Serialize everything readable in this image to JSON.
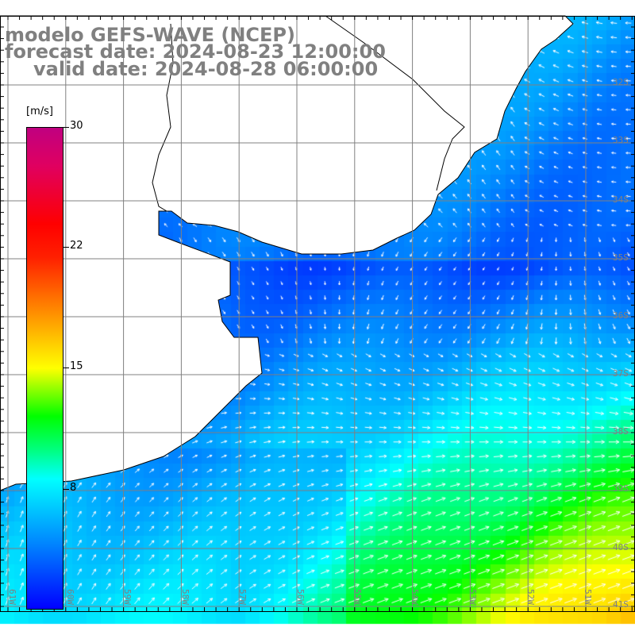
{
  "title": {
    "model": "modelo GEFS-WAVE (NCEP)",
    "forecast": "forecast date: 2024-08-23 12:00:00",
    "valid": "valid date: 2024-08-28 06:00:00"
  },
  "colorbar": {
    "units": "[m/s]",
    "labels": [
      "30",
      "22",
      "15",
      "8"
    ],
    "values": [
      30,
      22,
      15,
      8
    ],
    "range": [
      0,
      30
    ]
  },
  "lat_labels": [
    "32S",
    "33S",
    "34S",
    "35S",
    "36S",
    "37S",
    "38S",
    "39S",
    "40S",
    "41S"
  ],
  "lon_labels": [
    "61W",
    "60W",
    "59W",
    "58W",
    "57W",
    "56W",
    "55W",
    "54W",
    "53W",
    "52W",
    "51W"
  ],
  "colors": {
    "land": "#ffffff",
    "grid": "#808080",
    "label": "#808080",
    "arrow": "#ffffff"
  }
}
